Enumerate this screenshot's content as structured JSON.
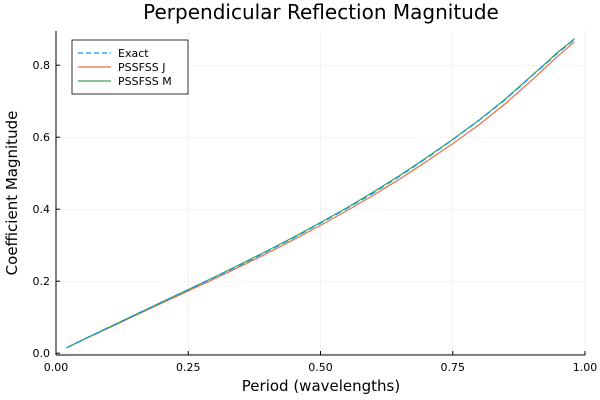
{
  "colors": {
    "exact": "#009af9",
    "pssfss_j": "#e26f46",
    "pssfss_m": "#3da44d"
  },
  "chart_data": {
    "type": "line",
    "title": "Perpendicular Reflection Magnitude",
    "xlabel": "Period (wavelengths)",
    "ylabel": "Coefficient Magnitude",
    "xlim": [
      0.0,
      1.0
    ],
    "ylim": [
      -0.005,
      0.895
    ],
    "xticks": [
      0.0,
      0.25,
      0.5,
      0.75,
      1.0
    ],
    "xtick_labels": [
      "0.00",
      "0.25",
      "0.50",
      "0.75",
      "1.00"
    ],
    "yticks": [
      0.0,
      0.2,
      0.4,
      0.6,
      0.8
    ],
    "ytick_labels": [
      "0.0",
      "0.2",
      "0.4",
      "0.6",
      "0.8"
    ],
    "grid": true,
    "legend_position": "top-left",
    "x": [
      0.02,
      0.05,
      0.1,
      0.15,
      0.2,
      0.25,
      0.3,
      0.35,
      0.4,
      0.45,
      0.5,
      0.55,
      0.6,
      0.65,
      0.7,
      0.75,
      0.8,
      0.85,
      0.9,
      0.93,
      0.95,
      0.97,
      0.98
    ],
    "series": [
      {
        "name": "Exact",
        "style": "dashed",
        "values": [
          0.015,
          0.037,
          0.072,
          0.107,
          0.142,
          0.176,
          0.211,
          0.246,
          0.283,
          0.321,
          0.361,
          0.402,
          0.445,
          0.492,
          0.541,
          0.593,
          0.647,
          0.705,
          0.771,
          0.809,
          0.836,
          0.859,
          0.872
        ]
      },
      {
        "name": "PSSFSS J",
        "style": "solid",
        "values": [
          0.015,
          0.036,
          0.07,
          0.105,
          0.139,
          0.173,
          0.207,
          0.242,
          0.278,
          0.316,
          0.355,
          0.396,
          0.439,
          0.484,
          0.532,
          0.582,
          0.635,
          0.694,
          0.759,
          0.8,
          0.827,
          0.852,
          0.865
        ]
      },
      {
        "name": "PSSFSS M",
        "style": "solid",
        "values": [
          0.015,
          0.037,
          0.072,
          0.107,
          0.142,
          0.177,
          0.212,
          0.248,
          0.285,
          0.323,
          0.363,
          0.404,
          0.448,
          0.494,
          0.543,
          0.594,
          0.648,
          0.707,
          0.772,
          0.811,
          0.838,
          0.861,
          0.874
        ]
      }
    ]
  }
}
